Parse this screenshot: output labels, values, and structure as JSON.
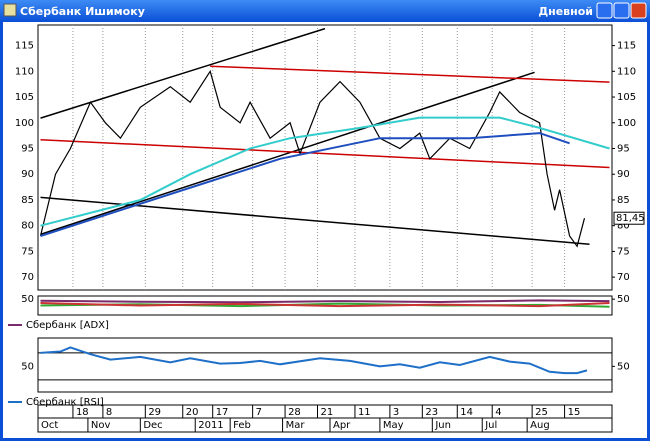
{
  "window": {
    "title": "Сбербанк Ишимоку",
    "timeframe": "Дневной"
  },
  "chart_data": [
    {
      "type": "line",
      "xlim": [
        0,
        230
      ],
      "ylim": [
        67.5,
        119
      ],
      "yticks": [
        70,
        75,
        80,
        85,
        90,
        95,
        100,
        105,
        110,
        115
      ],
      "grid": true,
      "xticks": [
        {
          "value": 14,
          "label": "18"
        },
        {
          "value": 26,
          "label": "8"
        },
        {
          "value": 43,
          "label": "29"
        },
        {
          "value": 58,
          "label": "20"
        },
        {
          "value": 70,
          "label": "17"
        },
        {
          "value": 86,
          "label": "7"
        },
        {
          "value": 99,
          "label": "28"
        },
        {
          "value": 112,
          "label": "21"
        },
        {
          "value": 127,
          "label": "11"
        },
        {
          "value": 141,
          "label": "3"
        },
        {
          "value": 154,
          "label": "23"
        },
        {
          "value": 168,
          "label": "14"
        },
        {
          "value": 182,
          "label": "4"
        },
        {
          "value": 198,
          "label": "25"
        },
        {
          "value": 211,
          "label": "15"
        }
      ],
      "xticks_major": [
        {
          "value": 0,
          "label": "Oct"
        },
        {
          "value": 20,
          "label": "Nov"
        },
        {
          "value": 41,
          "label": "Dec"
        },
        {
          "value": 63,
          "label": "2011"
        },
        {
          "value": 77,
          "label": "Feb"
        },
        {
          "value": 98,
          "label": "Mar"
        },
        {
          "value": 117,
          "label": "Apr"
        },
        {
          "value": 137,
          "label": "May"
        },
        {
          "value": 158,
          "label": "Jun"
        },
        {
          "value": 178,
          "label": "Jul"
        },
        {
          "value": 196,
          "label": "Aug"
        }
      ],
      "last_price": {
        "value": 81.45,
        "label": "81,45"
      },
      "series": [
        {
          "color": "#000000",
          "x": [
            1,
            7,
            13,
            21,
            27,
            33,
            41,
            53,
            61,
            69,
            73,
            81,
            85,
            93,
            101,
            105,
            113,
            121,
            129,
            137,
            145,
            153,
            157,
            165,
            173,
            181,
            185,
            193,
            201,
            204,
            207,
            209,
            213,
            216,
            219
          ],
          "values": [
            78,
            90,
            95,
            104,
            100,
            97,
            103,
            107,
            104,
            110,
            103,
            100,
            104,
            97,
            100,
            94,
            104,
            108,
            104,
            97,
            95,
            98,
            93,
            97,
            95,
            102,
            106,
            102,
            100,
            90,
            83,
            87,
            78,
            76,
            81.45
          ]
        },
        {
          "color": "#33cccc",
          "x": [
            1,
            41,
            61,
            85,
            101,
            129,
            153,
            173,
            185,
            201,
            229
          ],
          "values": [
            80,
            85,
            90,
            95,
            97,
            99,
            101,
            101,
            101,
            99,
            95
          ]
        },
        {
          "color": "#1f4fbf",
          "x": [
            1,
            33,
            65,
            97,
            137,
            173,
            201,
            213
          ],
          "values": [
            78,
            83,
            88,
            93,
            97,
            97,
            98,
            96
          ]
        }
      ],
      "trendlines": [
        {
          "color": "#000000",
          "x": [
            1,
            115
          ],
          "values": [
            100.9,
            118.3
          ]
        },
        {
          "color": "#000000",
          "x": [
            1,
            199
          ],
          "values": [
            78.3,
            109.8
          ]
        },
        {
          "color": "#000000",
          "x": [
            1,
            221
          ],
          "values": [
            85.5,
            76.4
          ]
        },
        {
          "color": "#cc0000",
          "x": [
            69,
            229
          ],
          "values": [
            111,
            107.9
          ]
        },
        {
          "color": "#cc0000",
          "x": [
            1,
            229
          ],
          "values": [
            96.7,
            91.3
          ]
        }
      ]
    },
    {
      "type": "line",
      "xlim": [
        0,
        230
      ],
      "ylim": [
        0,
        60
      ],
      "yticks": [
        50
      ],
      "series": [
        {
          "name": "Сбербанк [ADX]",
          "color": "#7a2a6a",
          "x": [
            1,
            41,
            81,
            121,
            161,
            201,
            229
          ],
          "values": [
            45,
            42,
            40,
            44,
            41,
            46,
            44
          ]
        },
        {
          "color": "#33aa33",
          "x": [
            1,
            41,
            81,
            121,
            161,
            201,
            229
          ],
          "values": [
            30,
            34,
            28,
            36,
            30,
            32,
            26
          ]
        },
        {
          "color": "#cc3333",
          "x": [
            1,
            41,
            81,
            121,
            161,
            201,
            229
          ],
          "values": [
            38,
            30,
            35,
            28,
            33,
            28,
            38
          ]
        }
      ]
    },
    {
      "type": "line",
      "xlim": [
        0,
        230
      ],
      "ylim": [
        12,
        92
      ],
      "yticks": [
        50
      ],
      "levels": [
        30,
        70
      ],
      "series": [
        {
          "name": "Сбербанк [RSI]",
          "color": "#1e6fc8",
          "x": [
            1,
            9,
            13,
            21,
            29,
            41,
            53,
            61,
            73,
            81,
            89,
            97,
            113,
            125,
            137,
            145,
            153,
            161,
            169,
            181,
            189,
            197,
            205,
            211,
            216,
            220
          ],
          "values": [
            70,
            72,
            78,
            68,
            60,
            64,
            56,
            62,
            54,
            55,
            58,
            53,
            62,
            58,
            50,
            53,
            48,
            56,
            52,
            64,
            57,
            54,
            42,
            40,
            40,
            44
          ]
        }
      ]
    }
  ]
}
